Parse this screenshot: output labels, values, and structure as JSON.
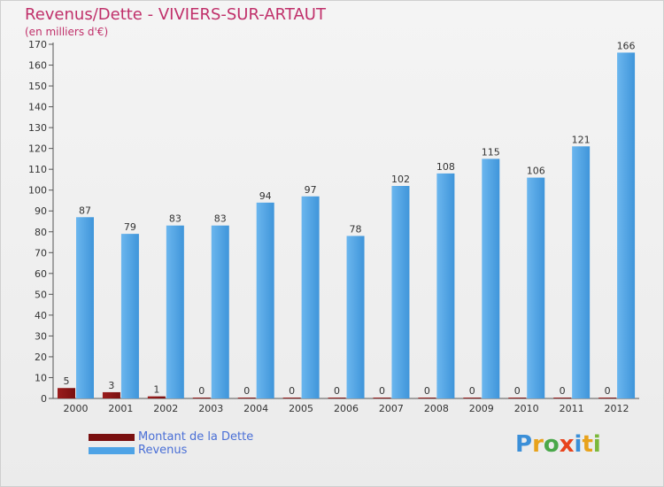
{
  "title": "Revenus/Dette - VIVIERS-SUR-ARTAUT",
  "subtitle": "(en milliers d'€)",
  "colors": {
    "title": "#c0306a",
    "debt": "#7a1010",
    "revenue": "#4ea3e6",
    "legend_text": "#4a6fd6"
  },
  "legend": [
    {
      "label": "Montant de la Dette",
      "color": "#7a1010"
    },
    {
      "label": "Revenus",
      "color": "#4ea3e6"
    }
  ],
  "logo": {
    "text": "Proxiti"
  },
  "chart_data": {
    "type": "bar",
    "categories": [
      "2000",
      "2001",
      "2002",
      "2003",
      "2004",
      "2005",
      "2006",
      "2007",
      "2008",
      "2009",
      "2010",
      "2011",
      "2012"
    ],
    "series": [
      {
        "name": "Montant de la Dette",
        "values": [
          5,
          3,
          1,
          0,
          0,
          0,
          0,
          0,
          0,
          0,
          0,
          0,
          0
        ]
      },
      {
        "name": "Revenus",
        "values": [
          87,
          79,
          83,
          83,
          94,
          97,
          78,
          102,
          108,
          115,
          106,
          121,
          166
        ]
      }
    ],
    "ylim": [
      0,
      170
    ],
    "yticks": [
      0,
      10,
      20,
      30,
      40,
      50,
      60,
      70,
      80,
      90,
      100,
      110,
      120,
      130,
      140,
      150,
      160,
      170
    ],
    "grid": false,
    "legend_position": "bottom-left"
  }
}
